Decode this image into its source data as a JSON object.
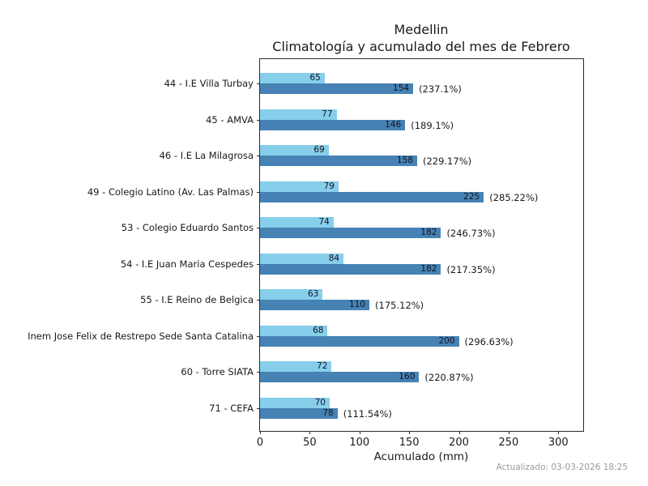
{
  "title": {
    "line1": "Medellin",
    "line2": "Climatología y acumulado del mes de Febrero"
  },
  "footer": {
    "updated": "Actualizado: 03-03-2026 18:25"
  },
  "colors": {
    "climatologia_bar": "#87CEEB",
    "acumulado_bar": "#4682B4",
    "axis": "#2b2b2b",
    "footer_text": "#9a9a9a"
  },
  "chart_data": {
    "type": "bar",
    "orientation": "horizontal",
    "title": "Medellin — Climatología y acumulado del mes de Febrero",
    "xlabel": "Acumulado (mm)",
    "ylabel": "",
    "xlim": [
      0,
      325
    ],
    "xticks": [
      0,
      50,
      100,
      150,
      200,
      250,
      300
    ],
    "grid": false,
    "legend": "none",
    "categories": [
      "44 - I.E Villa Turbay",
      "45 - AMVA",
      "46 - I.E La Milagrosa",
      "49 - Colegio Latino (Av. Las Palmas)",
      "53 - Colegio Eduardo Santos",
      "54 - I.E Juan Maria Cespedes",
      "55 - I.E Reino de Belgica",
      "Inem Jose Felix de Restrepo Sede Santa Catalina",
      "60 - Torre SIATA",
      "71 - CEFA"
    ],
    "series": [
      {
        "name": "Climatología",
        "color": "#87CEEB",
        "values": [
          65,
          77,
          69,
          79,
          74,
          84,
          63,
          68,
          72,
          70
        ]
      },
      {
        "name": "Acumulado",
        "color": "#4682B4",
        "values": [
          154,
          146,
          158,
          225,
          182,
          182,
          110,
          200,
          160,
          78
        ]
      }
    ],
    "pct_labels": [
      "(237.1%)",
      "(189.1%)",
      "(229.17%)",
      "(285.22%)",
      "(246.73%)",
      "(217.35%)",
      "(175.12%)",
      "(296.63%)",
      "(220.87%)",
      "(111.54%)"
    ]
  }
}
